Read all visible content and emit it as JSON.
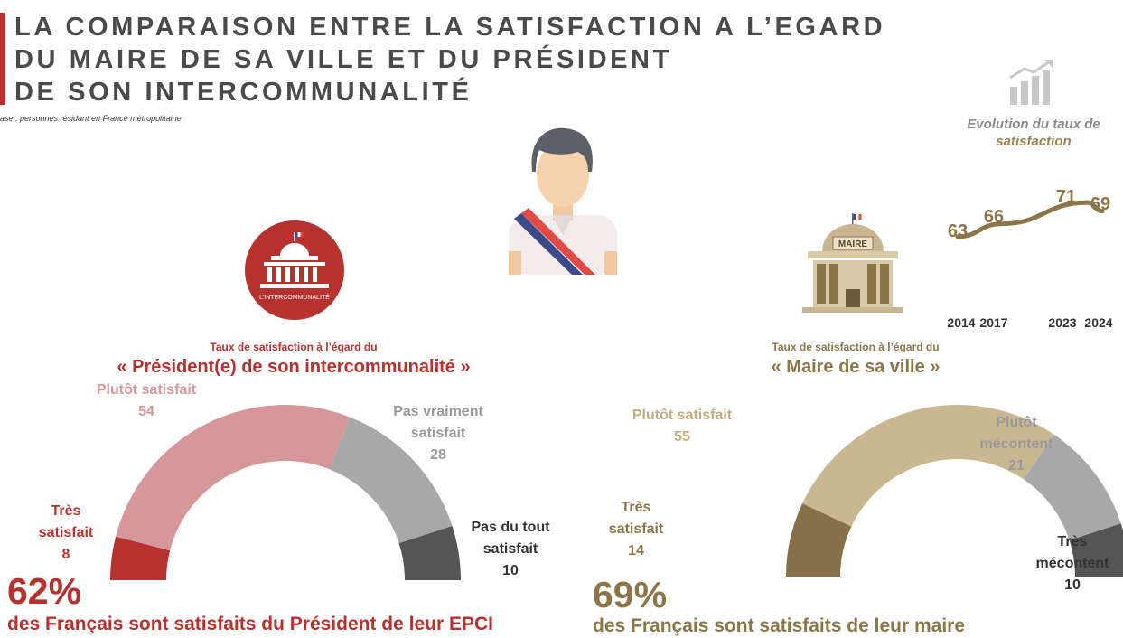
{
  "header": {
    "title_lines": [
      "LA COMPARAISON ENTRE LA SATISFACTION A L’EGARD",
      "DU MAIRE DE SA VILLE ET DU PRÉSIDENT",
      "DE SON INTERCOMMUNALITÉ"
    ],
    "subtitle": "ase : personnes résidant en France métropolitaine"
  },
  "icons": {
    "intercommunalite_badge_text": "L'INTERCOMMUNALITÉ",
    "mairie_sign": "MAIRE",
    "person": "mayor-with-sash-icon",
    "evolution": "bar-chart-growth-icon"
  },
  "colors": {
    "intercom_accent": "#b5322f",
    "mairie_accent": "#8b7649",
    "grey_dark": "#555555",
    "grey_mid": "#a8a8a8"
  },
  "chart_data": [
    {
      "type": "pie",
      "shape": "half-donut",
      "id": "intercommunalite",
      "title_small": "Taux de satisfaction à l’égard du",
      "title": "« Président(e) de son intercommunalité »",
      "slices": [
        {
          "label_lines": [
            "Très",
            "satisfait"
          ],
          "value": 8,
          "color": "#b5322f",
          "label_color": "#b5322f"
        },
        {
          "label_lines": [
            "Plutôt satisfait"
          ],
          "value": 54,
          "color": "#d6979a",
          "label_color": "#d6979a"
        },
        {
          "label_lines": [
            "Pas vraiment",
            "satisfait"
          ],
          "value": 28,
          "color": "#a8a8a8",
          "label_color": "#9a9a9a"
        },
        {
          "label_lines": [
            "Pas du tout",
            "satisfait"
          ],
          "value": 10,
          "color": "#555555",
          "label_color": "#333333"
        }
      ],
      "summary_pct": "62%",
      "summary_text": "des Français sont satisfaits du Président de leur EPCI",
      "summary_color": "#b5322f"
    },
    {
      "type": "pie",
      "shape": "half-donut",
      "id": "mairie",
      "title_small": "Taux de satisfaction à l’égard du",
      "title": "« Maire de sa ville »",
      "slices": [
        {
          "label_lines": [
            "Très",
            "satisfait"
          ],
          "value": 14,
          "color": "#857049",
          "label_color": "#8b7649"
        },
        {
          "label_lines": [
            "Plutôt satisfait"
          ],
          "value": 55,
          "color": "#c8b791",
          "label_color": "#c1ad82"
        },
        {
          "label_lines": [
            "Plutôt",
            "mécontent"
          ],
          "value": 21,
          "color": "#a8a8a8",
          "label_color": "#9a9a9a"
        },
        {
          "label_lines": [
            "Très",
            "mécontent"
          ],
          "value": 10,
          "color": "#555555",
          "label_color": "#333333"
        }
      ],
      "summary_pct": "69%",
      "summary_text": "des Français sont satisfaits de leur maire",
      "summary_color": "#8b7649"
    },
    {
      "type": "line",
      "id": "evolution",
      "title": "Evolution du taux de",
      "title_highlight": "satisfaction",
      "x": [
        "2014",
        "2017",
        "2023",
        "2024"
      ],
      "values": [
        63,
        66,
        71,
        69
      ],
      "color": "#8b7649"
    }
  ]
}
